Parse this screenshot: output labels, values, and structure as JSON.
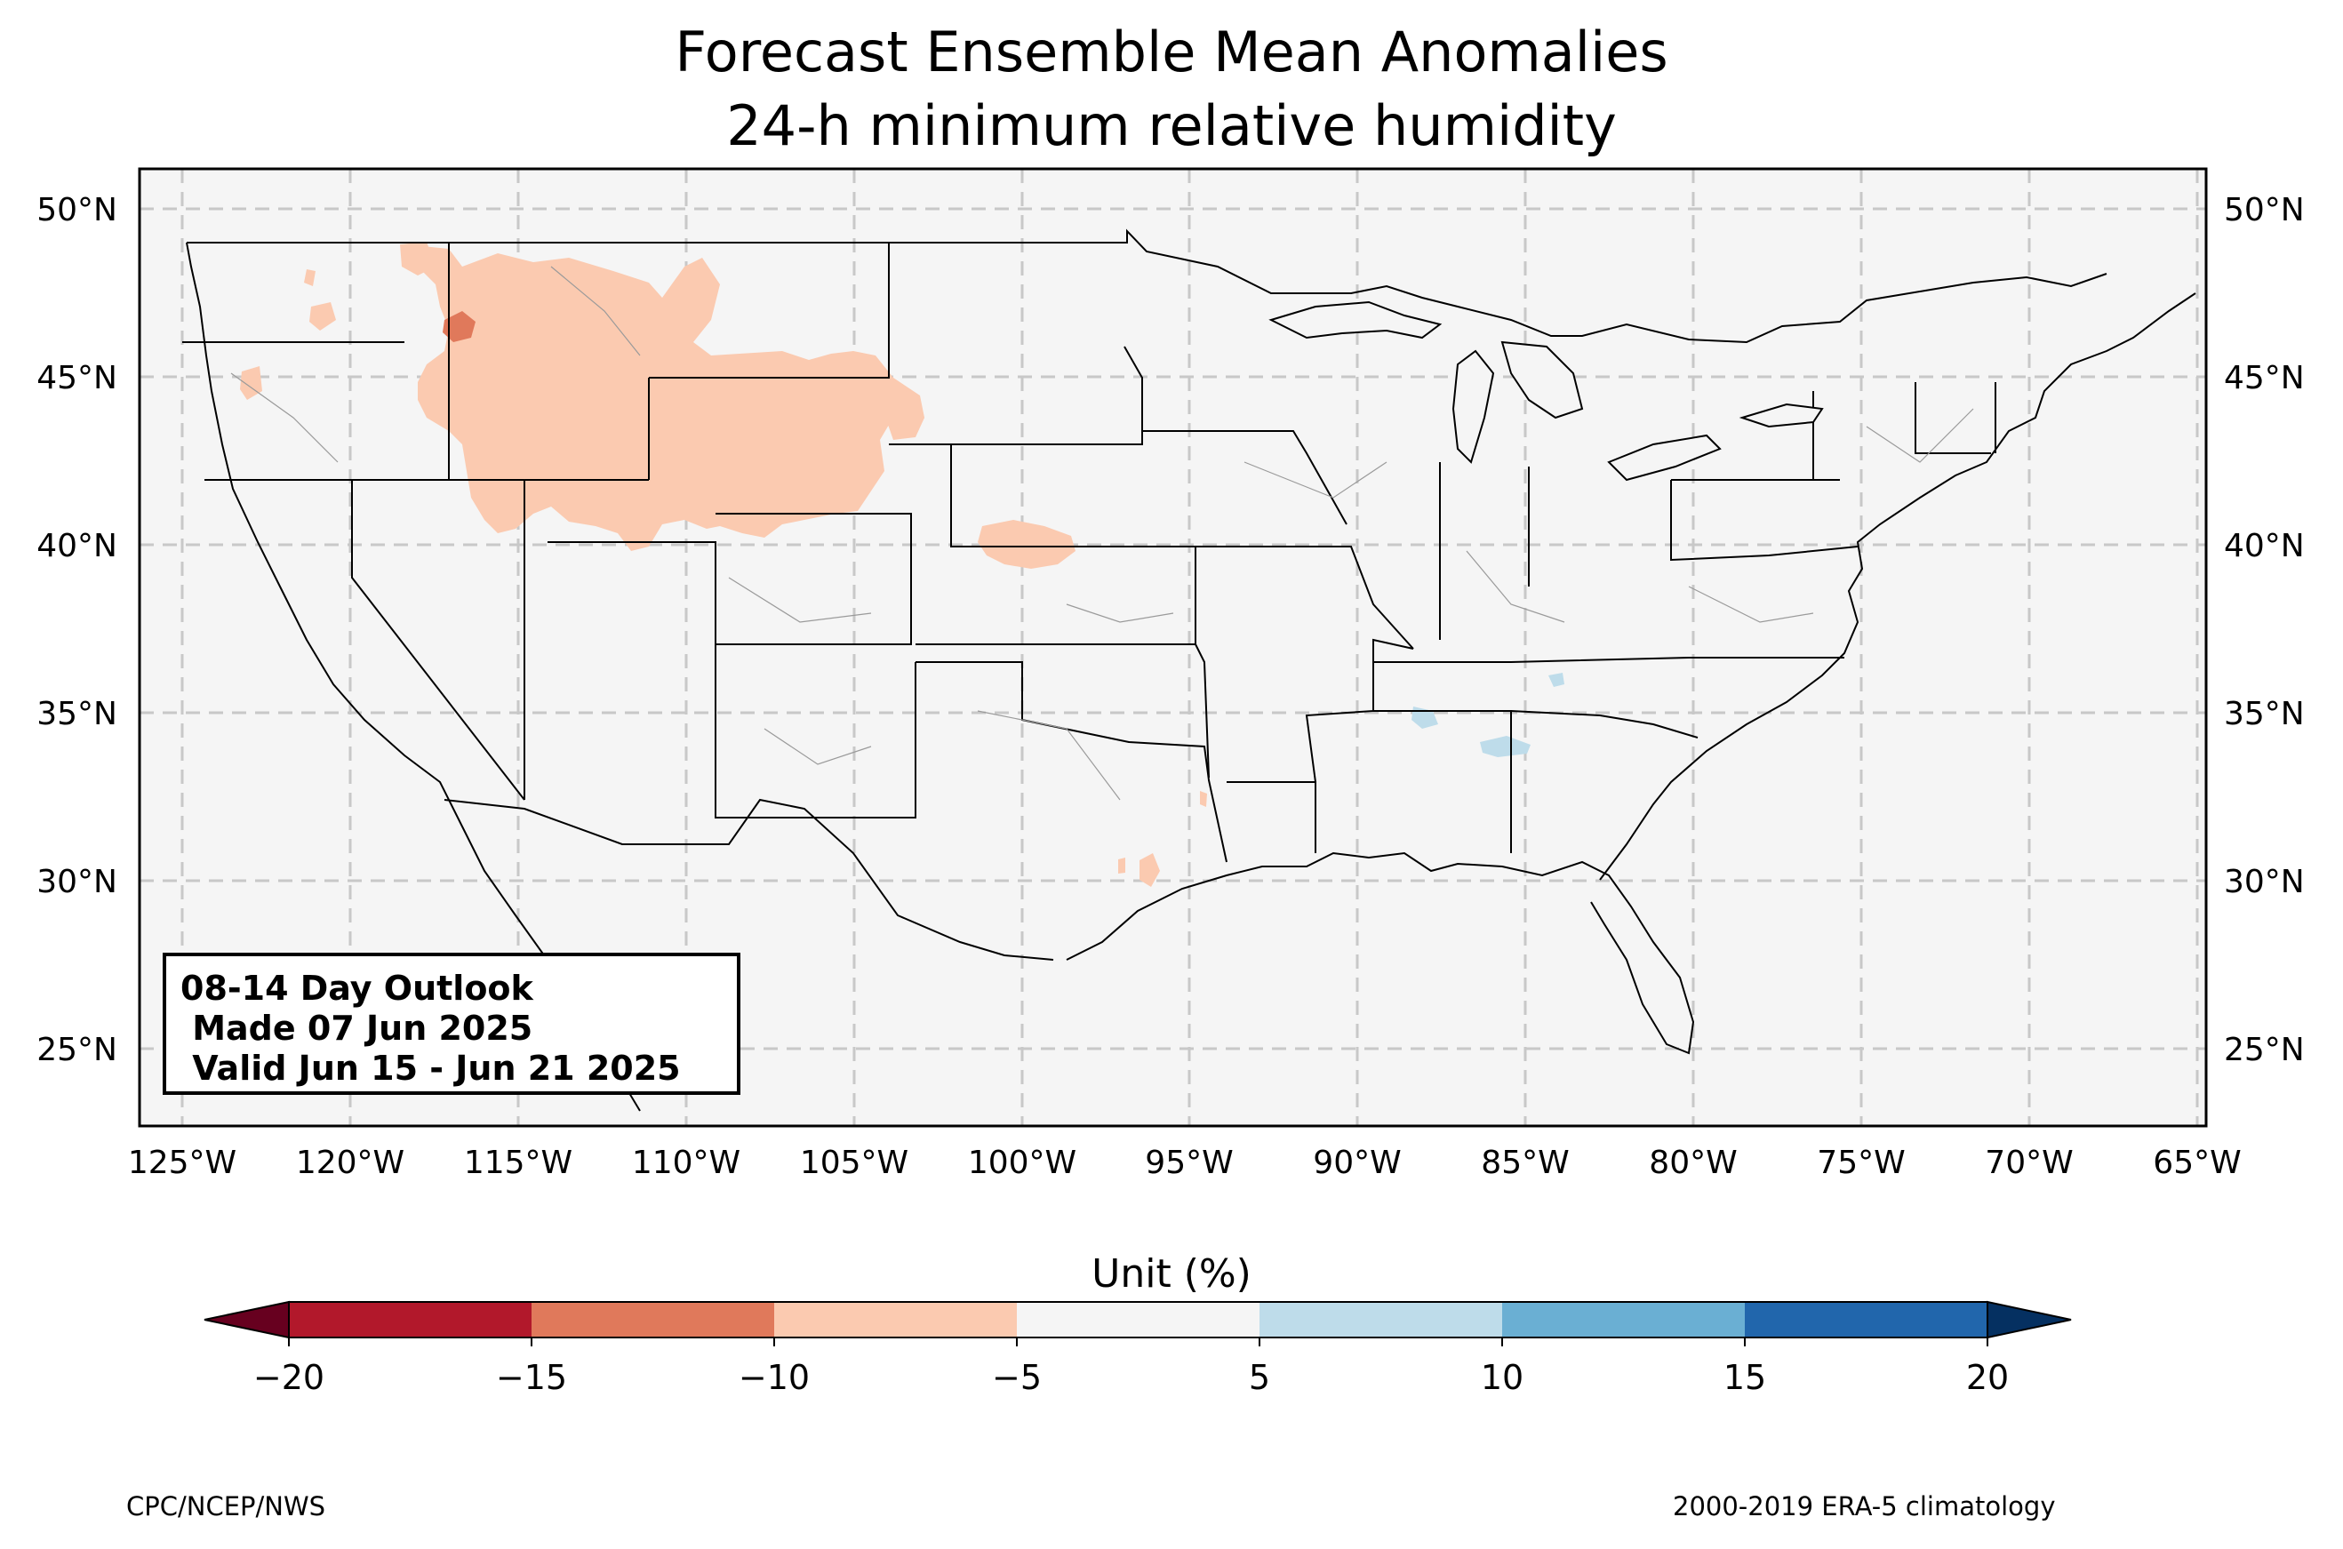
{
  "title": {
    "line1": "Forecast Ensemble Mean Anomalies",
    "line2": "24-h minimum relative humidity"
  },
  "map": {
    "lat_labels": [
      "50°N",
      "45°N",
      "40°N",
      "35°N",
      "30°N",
      "25°N"
    ],
    "lon_labels": [
      "125°W",
      "120°W",
      "115°W",
      "110°W",
      "105°W",
      "100°W",
      "95°W",
      "90°W",
      "85°W",
      "80°W",
      "75°W",
      "70°W",
      "65°W"
    ],
    "extent": {
      "lon": [
        -126.3,
        -64.9
      ],
      "lat": [
        22.8,
        51.2
      ]
    },
    "land_color": "#f5f5f5",
    "gridlines": "dashed"
  },
  "outlook_box": {
    "line1": "08-14 Day Outlook",
    "line2": " Made 07 Jun 2025",
    "line3": " Valid Jun 15 - Jun 21 2025"
  },
  "colorbar": {
    "label": "Unit (%)",
    "ticks": [
      "−20",
      "−15",
      "−10",
      "−5",
      "5",
      "10",
      "15",
      "20"
    ],
    "colors": [
      "#67001f",
      "#b2182b",
      "#e0795b",
      "#fbcab0",
      "#f5f5f5",
      "#bedcea",
      "#6aafd3",
      "#2166ac",
      "#053061"
    ]
  },
  "anomalies": [
    {
      "region": "northern-rockies",
      "bin": "-10 to -5"
    },
    {
      "region": "central-plains",
      "bin": "-10 to -5"
    },
    {
      "region": "idaho-core",
      "bin": "-15 to -10"
    },
    {
      "region": "tennessee-valley",
      "bin": "5 to 10"
    }
  ],
  "footer": {
    "credit": "CPC/NCEP/NWS",
    "climatology": "2000-2019 ERA-5 climatology"
  }
}
